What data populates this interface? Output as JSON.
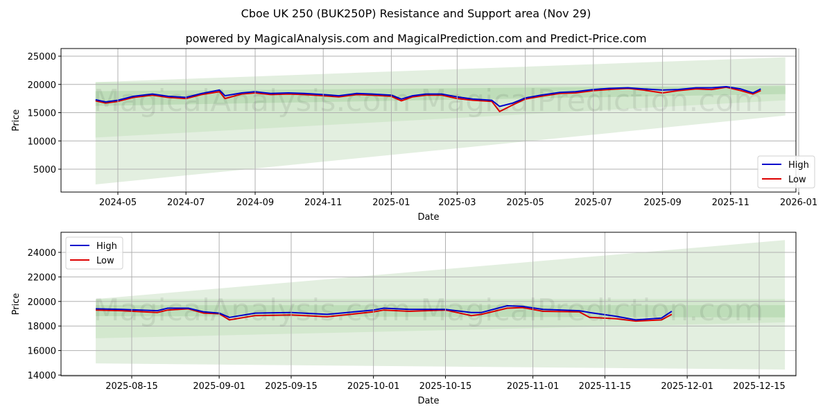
{
  "title": "Cboe UK 250 (BUK250P) Resistance and Support area (Nov 29)",
  "subtitle": "powered by MagicalAnalysis.com and MagicalPrediction.com and Predict-Price.com",
  "watermark": "MagicalAnalysis.com   MagicalPrediction.com",
  "colors": {
    "high": "#0000cc",
    "low": "#dd0000",
    "band_light": "#e3efe0",
    "band_mid": "#cde5c8",
    "band_dark": "#b7dab1",
    "grid": "#b0b0b0"
  },
  "chart_data": [
    {
      "type": "line",
      "title": "Cboe UK 250 (BUK250P) Resistance and Support area (Nov 29)",
      "xlabel": "Date",
      "ylabel": "Price",
      "x_ticks": [
        "2024-05",
        "2024-07",
        "2024-09",
        "2024-11",
        "2025-01",
        "2025-03",
        "2025-05",
        "2025-07",
        "2025-09",
        "2025-11",
        "2026-01"
      ],
      "y_ticks": [
        5000,
        10000,
        15000,
        20000,
        25000
      ],
      "ylim": [
        1000,
        26300
      ],
      "grid": true,
      "legend": {
        "position": "lower right",
        "entries": [
          "High",
          "Low"
        ]
      },
      "x": [
        "2024-04-11",
        "2024-04-20",
        "2024-05-01",
        "2024-05-15",
        "2024-06-01",
        "2024-06-15",
        "2024-07-01",
        "2024-07-15",
        "2024-07-31",
        "2024-08-05",
        "2024-08-20",
        "2024-09-01",
        "2024-09-15",
        "2024-10-01",
        "2024-10-15",
        "2024-11-01",
        "2024-11-15",
        "2024-12-01",
        "2024-12-15",
        "2025-01-01",
        "2025-01-10",
        "2025-01-20",
        "2025-02-01",
        "2025-02-15",
        "2025-03-01",
        "2025-03-15",
        "2025-04-01",
        "2025-04-08",
        "2025-04-20",
        "2025-05-01",
        "2025-05-15",
        "2025-06-01",
        "2025-06-15",
        "2025-07-01",
        "2025-07-15",
        "2025-08-01",
        "2025-08-15",
        "2025-09-01",
        "2025-09-15",
        "2025-10-01",
        "2025-10-15",
        "2025-10-28",
        "2025-11-10",
        "2025-11-21",
        "2025-11-28"
      ],
      "series": [
        {
          "name": "High",
          "values": [
            17300,
            16900,
            17200,
            17900,
            18300,
            17900,
            17700,
            18400,
            19000,
            18000,
            18500,
            18700,
            18400,
            18500,
            18400,
            18200,
            18000,
            18400,
            18300,
            18100,
            17400,
            18000,
            18300,
            18300,
            17800,
            17400,
            17200,
            16100,
            16700,
            17600,
            18100,
            18600,
            18700,
            19100,
            19300,
            19400,
            19200,
            19000,
            19100,
            19400,
            19400,
            19600,
            19200,
            18500,
            19200
          ]
        },
        {
          "name": "Low",
          "values": [
            17100,
            16700,
            17000,
            17700,
            18100,
            17700,
            17500,
            18200,
            18700,
            17500,
            18300,
            18500,
            18200,
            18300,
            18200,
            18000,
            17800,
            18200,
            18100,
            17900,
            17100,
            17800,
            18100,
            18100,
            17500,
            17200,
            17000,
            15200,
            16400,
            17400,
            17900,
            18400,
            18500,
            18900,
            19100,
            19300,
            19000,
            18500,
            18900,
            19200,
            19100,
            19500,
            18900,
            18300,
            18900
          ]
        }
      ],
      "bands": [
        {
          "name": "outer",
          "x_start": "2024-04-11",
          "x_end": "2025-12-20",
          "upper": [
            20400,
            24800
          ],
          "lower": [
            2300,
            14500
          ]
        },
        {
          "name": "middle",
          "x_start": "2024-04-11",
          "x_end": "2025-12-20",
          "upper": [
            20400,
            19500
          ],
          "lower": [
            10600,
            17200
          ]
        },
        {
          "name": "inner",
          "x_start": "2024-04-11",
          "x_end": "2025-12-20",
          "upper": [
            18800,
            19800
          ],
          "lower": [
            16200,
            18300
          ]
        }
      ]
    },
    {
      "type": "line",
      "xlabel": "Date",
      "ylabel": "Price",
      "x_ticks": [
        "2025-08-15",
        "2025-09-01",
        "2025-09-15",
        "2025-10-01",
        "2025-10-15",
        "2025-11-01",
        "2025-11-15",
        "2025-12-01",
        "2025-12-15"
      ],
      "y_ticks": [
        14000,
        16000,
        18000,
        20000,
        22000,
        24000
      ],
      "ylim": [
        13900,
        25600
      ],
      "grid": true,
      "legend": {
        "position": "upper left",
        "entries": [
          "High",
          "Low"
        ]
      },
      "x": [
        "2025-08-08",
        "2025-08-13",
        "2025-08-20",
        "2025-08-22",
        "2025-08-26",
        "2025-08-29",
        "2025-09-01",
        "2025-09-03",
        "2025-09-08",
        "2025-09-15",
        "2025-09-22",
        "2025-10-01",
        "2025-10-03",
        "2025-10-08",
        "2025-10-15",
        "2025-10-20",
        "2025-10-22",
        "2025-10-27",
        "2025-10-30",
        "2025-11-03",
        "2025-11-10",
        "2025-11-12",
        "2025-11-17",
        "2025-11-21",
        "2025-11-26",
        "2025-11-28"
      ],
      "series": [
        {
          "name": "High",
          "values": [
            19400,
            19350,
            19250,
            19450,
            19450,
            19150,
            19050,
            18700,
            19050,
            19100,
            18950,
            19300,
            19450,
            19350,
            19350,
            19100,
            19100,
            19650,
            19600,
            19350,
            19250,
            19100,
            18800,
            18500,
            18650,
            19200
          ]
        },
        {
          "name": "Low",
          "values": [
            19300,
            19250,
            19100,
            19300,
            19400,
            19050,
            19000,
            18500,
            18850,
            18900,
            18750,
            19150,
            19300,
            19200,
            19300,
            18850,
            18950,
            19450,
            19500,
            19200,
            19150,
            18700,
            18600,
            18400,
            18500,
            18950
          ]
        }
      ],
      "bands": [
        {
          "name": "outer",
          "x_start": "2025-08-08",
          "x_end": "2025-12-20",
          "upper": [
            20200,
            25000
          ],
          "lower": [
            14950,
            14450
          ]
        },
        {
          "name": "middle",
          "x_start": "2025-08-08",
          "x_end": "2025-12-20",
          "upper": [
            20200,
            20200
          ],
          "lower": [
            17000,
            18300
          ]
        },
        {
          "name": "inner",
          "x_start": "2025-08-08",
          "x_end": "2025-12-20",
          "upper": [
            19700,
            19700
          ],
          "lower": [
            18800,
            18700
          ]
        }
      ]
    }
  ]
}
